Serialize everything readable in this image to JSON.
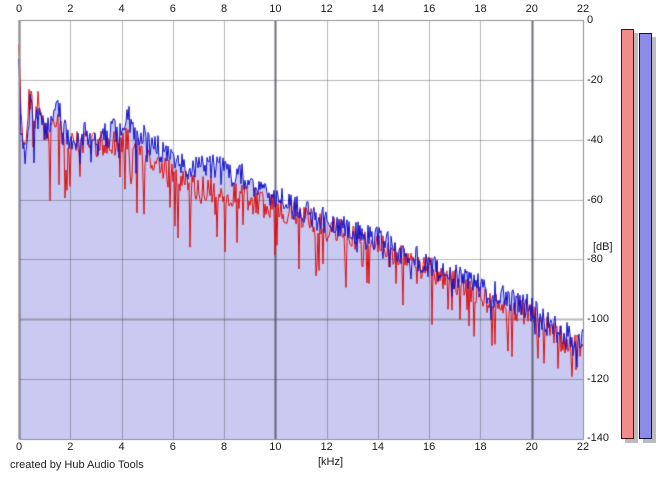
{
  "app_title": "spectrum-analyzer-view",
  "footer": {
    "credit": "created by Hub Audio Tools"
  },
  "axes": {
    "x_unit_label": "[kHz]",
    "y_unit_label": "[dB]",
    "x_tick_labels": [
      "0",
      "2",
      "4",
      "6",
      "8",
      "10",
      "12",
      "14",
      "16",
      "18",
      "20",
      "22"
    ],
    "x_tick_values": [
      0,
      2,
      4,
      6,
      8,
      10,
      12,
      14,
      16,
      18,
      20,
      22
    ],
    "x_major_values": [
      0,
      10,
      20
    ],
    "y_tick_labels": [
      "0",
      "-20",
      "-40",
      "-60",
      "-80",
      "-100",
      "-120",
      "-140"
    ],
    "y_tick_values": [
      0,
      -20,
      -40,
      -60,
      -80,
      -100,
      -120,
      -140
    ]
  },
  "colors": {
    "background": "#ffffff",
    "area_fill": "#c9c9f2",
    "grid_minor": "rgba(70,70,70,0.38)",
    "grid_major": "rgba(70,70,85,0.78)",
    "plot_border": "#909090",
    "trace_red": "#dd1111",
    "trace_blue": "#1414cc",
    "meter_red_fill": "#f18c8c",
    "meter_red_border": "#4a1010",
    "meter_blue_fill": "#8c8ce8",
    "meter_blue_border": "#10104a",
    "meter_shadow": "#bcbcbc",
    "text": "#1a1a1a"
  },
  "meters": {
    "left_red_peak_db": -3,
    "right_blue_peak_db": -4.5
  },
  "chart_data": {
    "type": "line",
    "title": "",
    "xlabel": "[kHz]",
    "ylabel": "[dB]",
    "xlim": [
      0,
      22
    ],
    "ylim": [
      -140,
      0
    ],
    "grid": true,
    "legend": "none",
    "noise_seed": 7,
    "x": [
      0,
      0.06,
      0.2,
      0.3,
      0.45,
      0.6,
      0.8,
      1.0,
      1.2,
      1.5,
      1.8,
      2.0,
      2.5,
      3.0,
      3.5,
      4.0,
      4.25,
      4.5,
      5.0,
      5.5,
      6.0,
      6.5,
      7.0,
      7.5,
      8.0,
      8.5,
      9.0,
      9.5,
      10.0,
      10.5,
      11.0,
      11.5,
      12.0,
      12.5,
      13.0,
      13.5,
      14.0,
      14.5,
      15.0,
      15.5,
      16.0,
      16.5,
      17.0,
      17.5,
      18.0,
      18.5,
      19.0,
      19.5,
      20.0,
      20.5,
      21.0,
      21.5,
      22.0
    ],
    "series": [
      {
        "name": "spectrum-red",
        "color": "#dd1111",
        "fill": null,
        "noise": {
          "jitter_db": 9,
          "dip_probability": 0.16,
          "dip_max_db": 20
        },
        "values": [
          -8,
          -30,
          -42,
          -36,
          -22,
          -33,
          -26,
          -38,
          -38,
          -35,
          -40,
          -43,
          -41,
          -42,
          -42,
          -41,
          -40,
          -43,
          -45,
          -48,
          -52,
          -55,
          -57,
          -57,
          -58,
          -59,
          -60,
          -62,
          -63,
          -65,
          -66,
          -68,
          -70,
          -71,
          -73,
          -74,
          -76,
          -78,
          -80,
          -82,
          -84,
          -86,
          -88,
          -90,
          -92,
          -94,
          -95,
          -97,
          -99,
          -103,
          -106,
          -109,
          -111
        ]
      },
      {
        "name": "spectrum-blue",
        "color": "#1414cc",
        "fill": "#c9c9f2",
        "noise": {
          "jitter_db": 9,
          "dip_probability": 0.1,
          "dip_max_db": 12
        },
        "values": [
          -10,
          -34,
          -44,
          -40,
          -27,
          -38,
          -31,
          -40,
          -36,
          -29,
          -38,
          -41,
          -39,
          -39,
          -39,
          -36,
          -33,
          -37,
          -41,
          -44,
          -47,
          -49,
          -50,
          -49,
          -50,
          -52,
          -54,
          -57,
          -60,
          -62,
          -64,
          -66,
          -68,
          -69,
          -71,
          -72,
          -74,
          -76,
          -78,
          -80,
          -82,
          -84,
          -86,
          -88,
          -90,
          -92,
          -93,
          -95,
          -97,
          -101,
          -104,
          -106,
          -108
        ]
      }
    ]
  }
}
